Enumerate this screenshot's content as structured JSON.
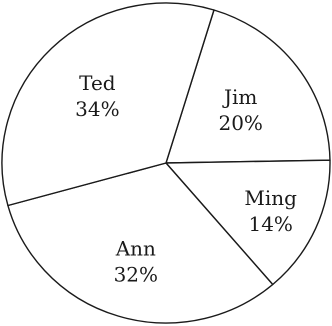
{
  "chart_data": {
    "type": "pie",
    "slices": [
      {
        "label": "Jim",
        "value": 20,
        "value_text": "20%"
      },
      {
        "label": "Ming",
        "value": 14,
        "value_text": "14%"
      },
      {
        "label": "Ann",
        "value": 32,
        "value_text": "32%"
      },
      {
        "label": "Ted",
        "value": 34,
        "value_text": "34%"
      }
    ],
    "title": "",
    "legend": "none",
    "labels_inside": true,
    "start_angle_deg": 17
  }
}
